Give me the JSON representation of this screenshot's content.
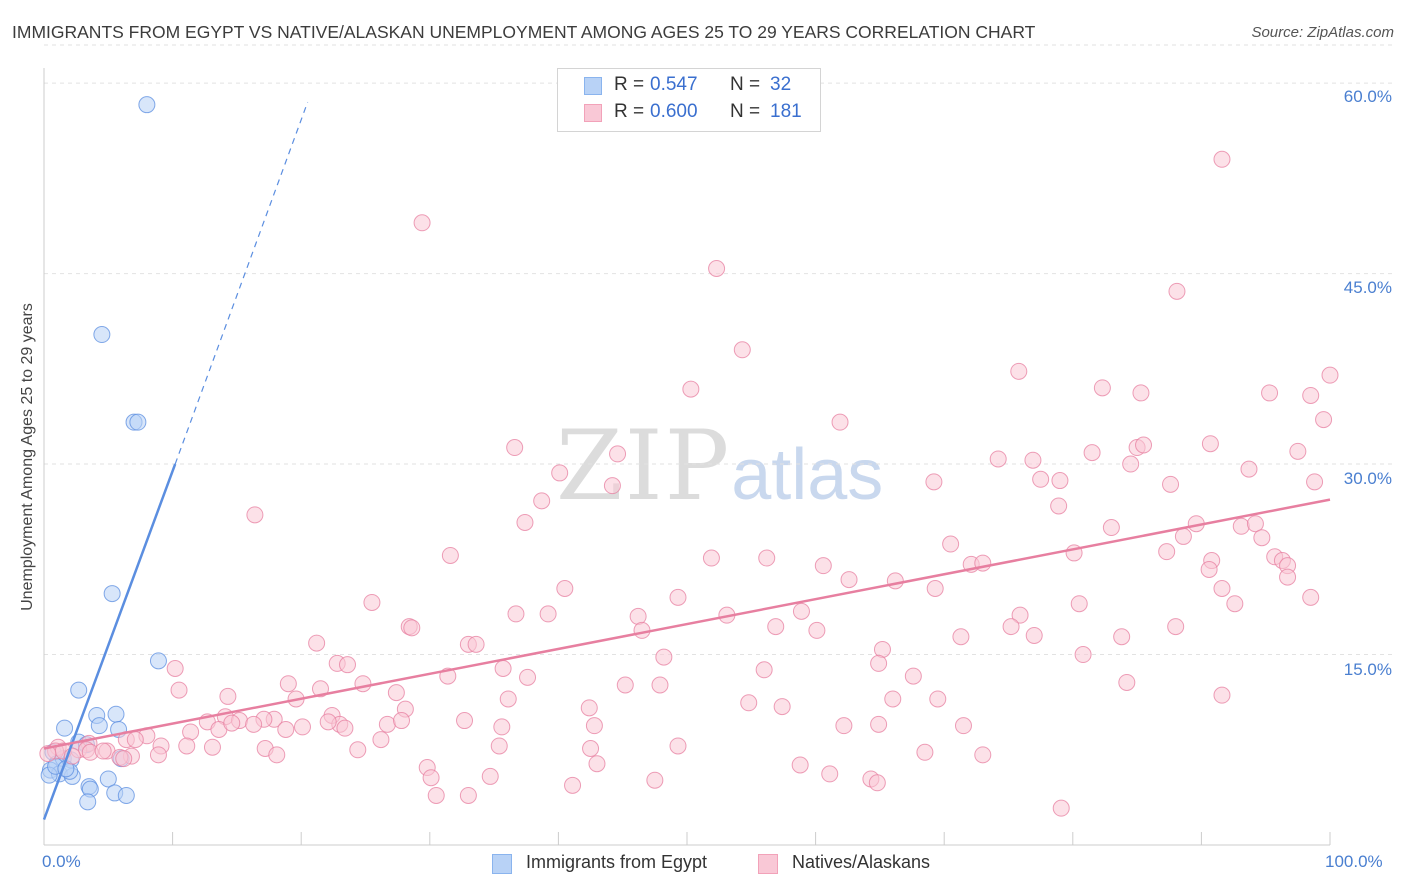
{
  "title": "IMMIGRANTS FROM EGYPT VS NATIVE/ALASKAN UNEMPLOYMENT AMONG AGES 25 TO 29 YEARS CORRELATION CHART",
  "source": "Source: ZipAtlas.com",
  "watermark": {
    "part1": "ZIP",
    "part2": "atlas"
  },
  "stats": [
    {
      "r_label": "R =",
      "r_value": "0.547",
      "n_label": "N =",
      "n_value": "32",
      "color": "#8ab4ee",
      "fill": "#b8d2f6"
    },
    {
      "r_label": "R =",
      "r_value": "0.600",
      "n_label": "N =",
      "n_value": "181",
      "color": "#f2a2b9",
      "fill": "#f9c8d6"
    }
  ],
  "legend": [
    {
      "label": "Immigrants from Egypt",
      "color": "#8ab4ee",
      "fill": "#b8d2f6"
    },
    {
      "label": "Natives/Alaskans",
      "color": "#f2a2b9",
      "fill": "#f9c8d6"
    }
  ],
  "chart_data": {
    "type": "scatter",
    "title": "IMMIGRANTS FROM EGYPT VS NATIVE/ALASKAN UNEMPLOYMENT AMONG AGES 25 TO 29 YEARS CORRELATION CHART",
    "xlabel": "",
    "ylabel": "Unemployment Among Ages 25 to 29 years",
    "xlim": [
      0,
      100
    ],
    "ylim": [
      0,
      63
    ],
    "x_tick_labels": [
      {
        "value": 0,
        "label": "0.0%"
      },
      {
        "value": 100,
        "label": "100.0%"
      }
    ],
    "y_tick_labels": [
      {
        "value": 15,
        "label": "15.0%"
      },
      {
        "value": 30,
        "label": "30.0%"
      },
      {
        "value": 45,
        "label": "45.0%"
      },
      {
        "value": 60,
        "label": "60.0%"
      }
    ],
    "x_minor_ticks": [
      10,
      20,
      30,
      40,
      50,
      60,
      70,
      80,
      90,
      100
    ],
    "grid": true,
    "series": [
      {
        "name": "Immigrants from Egypt",
        "color": "#5b8ee0",
        "fill": "#b8d2f6",
        "trend": {
          "x0": 0,
          "y0": 2.0,
          "x1": 10.2,
          "y1": 30.0,
          "dash_to_x": 20.5,
          "dash_to_y": 58.5
        },
        "points": [
          [
            8.0,
            58.3
          ],
          [
            4.5,
            40.2
          ],
          [
            7.0,
            33.3
          ],
          [
            7.3,
            33.3
          ],
          [
            5.3,
            19.8
          ],
          [
            8.9,
            14.5
          ],
          [
            2.7,
            12.2
          ],
          [
            1.6,
            9.2
          ],
          [
            4.1,
            10.2
          ],
          [
            5.6,
            10.3
          ],
          [
            5.8,
            9.1
          ],
          [
            6.0,
            6.8
          ],
          [
            4.3,
            9.4
          ],
          [
            2.7,
            8.1
          ],
          [
            3.3,
            7.9
          ],
          [
            0.7,
            7.3
          ],
          [
            1.0,
            6.4
          ],
          [
            1.5,
            6.8
          ],
          [
            2.1,
            6.7
          ],
          [
            0.5,
            5.9
          ],
          [
            1.2,
            5.6
          ],
          [
            0.4,
            5.5
          ],
          [
            2.2,
            5.4
          ],
          [
            5.0,
            5.2
          ],
          [
            3.5,
            4.6
          ],
          [
            3.6,
            4.4
          ],
          [
            5.5,
            4.1
          ],
          [
            6.4,
            3.9
          ],
          [
            3.4,
            3.4
          ],
          [
            2.0,
            5.8
          ],
          [
            0.9,
            6.2
          ],
          [
            1.7,
            6.0
          ]
        ]
      },
      {
        "name": "Natives/Alaskans",
        "color": "#e77fa0",
        "fill": "#f9c8d6",
        "trend": {
          "x0": 0,
          "y0": 7.6,
          "x1": 100,
          "y1": 27.2
        },
        "points": [
          [
            91.6,
            54.0
          ],
          [
            29.4,
            49.0
          ],
          [
            52.3,
            45.4
          ],
          [
            88.1,
            43.6
          ],
          [
            54.3,
            39.0
          ],
          [
            50.3,
            35.9
          ],
          [
            75.8,
            37.3
          ],
          [
            100.0,
            37.0
          ],
          [
            82.3,
            36.0
          ],
          [
            85.3,
            35.6
          ],
          [
            95.3,
            35.6
          ],
          [
            98.5,
            35.4
          ],
          [
            61.9,
            33.3
          ],
          [
            99.5,
            33.5
          ],
          [
            36.6,
            31.3
          ],
          [
            81.5,
            30.9
          ],
          [
            85.0,
            31.3
          ],
          [
            85.5,
            31.5
          ],
          [
            90.7,
            31.6
          ],
          [
            97.5,
            31.0
          ],
          [
            44.6,
            30.8
          ],
          [
            74.2,
            30.4
          ],
          [
            76.9,
            30.3
          ],
          [
            84.5,
            30.0
          ],
          [
            93.7,
            29.6
          ],
          [
            40.1,
            29.3
          ],
          [
            69.2,
            28.6
          ],
          [
            77.5,
            28.8
          ],
          [
            79.0,
            28.7
          ],
          [
            87.6,
            28.4
          ],
          [
            98.8,
            28.6
          ],
          [
            44.2,
            28.3
          ],
          [
            38.7,
            27.1
          ],
          [
            78.9,
            26.7
          ],
          [
            16.4,
            26.0
          ],
          [
            37.4,
            25.4
          ],
          [
            83.0,
            25.0
          ],
          [
            89.6,
            25.3
          ],
          [
            93.1,
            25.1
          ],
          [
            94.2,
            25.3
          ],
          [
            94.7,
            24.2
          ],
          [
            88.6,
            24.3
          ],
          [
            70.5,
            23.7
          ],
          [
            80.1,
            23.0
          ],
          [
            87.3,
            23.1
          ],
          [
            31.6,
            22.8
          ],
          [
            51.9,
            22.6
          ],
          [
            56.2,
            22.6
          ],
          [
            90.8,
            22.4
          ],
          [
            95.7,
            22.7
          ],
          [
            60.6,
            22.0
          ],
          [
            72.1,
            22.1
          ],
          [
            73.0,
            22.2
          ],
          [
            90.6,
            21.7
          ],
          [
            96.3,
            22.4
          ],
          [
            96.7,
            22.0
          ],
          [
            62.6,
            20.9
          ],
          [
            66.2,
            20.8
          ],
          [
            69.3,
            20.2
          ],
          [
            40.5,
            20.2
          ],
          [
            91.6,
            20.2
          ],
          [
            96.7,
            21.1
          ],
          [
            49.3,
            19.5
          ],
          [
            25.5,
            19.1
          ],
          [
            80.5,
            19.0
          ],
          [
            92.6,
            19.0
          ],
          [
            98.5,
            19.5
          ],
          [
            36.7,
            18.2
          ],
          [
            39.2,
            18.2
          ],
          [
            46.2,
            18.0
          ],
          [
            53.1,
            18.1
          ],
          [
            58.9,
            18.4
          ],
          [
            75.9,
            18.1
          ],
          [
            88.0,
            17.2
          ],
          [
            75.2,
            17.2
          ],
          [
            28.4,
            17.2
          ],
          [
            28.6,
            17.1
          ],
          [
            46.5,
            16.9
          ],
          [
            60.1,
            16.9
          ],
          [
            56.9,
            17.2
          ],
          [
            71.3,
            16.4
          ],
          [
            77.0,
            16.5
          ],
          [
            83.8,
            16.4
          ],
          [
            21.2,
            15.9
          ],
          [
            33.0,
            15.8
          ],
          [
            33.6,
            15.8
          ],
          [
            65.2,
            15.4
          ],
          [
            48.2,
            14.8
          ],
          [
            80.8,
            15.0
          ],
          [
            22.8,
            14.3
          ],
          [
            23.6,
            14.2
          ],
          [
            35.7,
            13.9
          ],
          [
            10.2,
            13.9
          ],
          [
            37.6,
            13.2
          ],
          [
            56.0,
            13.8
          ],
          [
            64.9,
            14.3
          ],
          [
            67.6,
            13.3
          ],
          [
            31.4,
            13.3
          ],
          [
            24.8,
            12.7
          ],
          [
            19.0,
            12.7
          ],
          [
            10.5,
            12.2
          ],
          [
            21.5,
            12.3
          ],
          [
            45.2,
            12.6
          ],
          [
            47.9,
            12.6
          ],
          [
            84.2,
            12.8
          ],
          [
            27.4,
            12.0
          ],
          [
            14.3,
            11.7
          ],
          [
            19.6,
            11.5
          ],
          [
            36.1,
            11.5
          ],
          [
            42.4,
            10.8
          ],
          [
            54.8,
            11.2
          ],
          [
            57.4,
            10.9
          ],
          [
            66.0,
            11.5
          ],
          [
            69.5,
            11.5
          ],
          [
            91.6,
            11.8
          ],
          [
            28.1,
            10.7
          ],
          [
            22.4,
            10.2
          ],
          [
            12.7,
            9.7
          ],
          [
            14.1,
            10.1
          ],
          [
            15.2,
            9.8
          ],
          [
            17.9,
            9.9
          ],
          [
            20.1,
            9.3
          ],
          [
            26.7,
            9.5
          ],
          [
            27.8,
            9.8
          ],
          [
            32.7,
            9.8
          ],
          [
            17.1,
            9.9
          ],
          [
            35.6,
            9.3
          ],
          [
            42.8,
            9.4
          ],
          [
            23.0,
            9.5
          ],
          [
            23.4,
            9.2
          ],
          [
            16.3,
            9.5
          ],
          [
            13.6,
            9.1
          ],
          [
            62.2,
            9.4
          ],
          [
            64.9,
            9.5
          ],
          [
            71.5,
            9.4
          ],
          [
            8.0,
            8.6
          ],
          [
            11.4,
            8.9
          ],
          [
            18.8,
            9.1
          ],
          [
            14.6,
            9.6
          ],
          [
            22.1,
            9.7
          ],
          [
            6.4,
            8.3
          ],
          [
            7.1,
            8.3
          ],
          [
            3.5,
            8.0
          ],
          [
            9.1,
            7.8
          ],
          [
            17.2,
            7.6
          ],
          [
            24.4,
            7.5
          ],
          [
            26.2,
            8.3
          ],
          [
            11.1,
            7.8
          ],
          [
            13.1,
            7.7
          ],
          [
            1.1,
            7.7
          ],
          [
            0.9,
            7.4
          ],
          [
            1.5,
            7.4
          ],
          [
            2.7,
            7.5
          ],
          [
            3.3,
            7.5
          ],
          [
            4.9,
            7.4
          ],
          [
            6.8,
            7.0
          ],
          [
            5.9,
            6.9
          ],
          [
            6.2,
            6.8
          ],
          [
            8.9,
            7.1
          ],
          [
            18.1,
            7.1
          ],
          [
            3.6,
            7.3
          ],
          [
            4.6,
            7.4
          ],
          [
            2.2,
            7.0
          ],
          [
            0.3,
            7.2
          ],
          [
            35.4,
            7.8
          ],
          [
            42.5,
            7.6
          ],
          [
            49.3,
            7.8
          ],
          [
            68.5,
            7.3
          ],
          [
            73.0,
            7.1
          ],
          [
            58.8,
            6.3
          ],
          [
            43.0,
            6.4
          ],
          [
            29.8,
            6.1
          ],
          [
            30.1,
            5.3
          ],
          [
            34.7,
            5.4
          ],
          [
            47.5,
            5.1
          ],
          [
            61.1,
            5.6
          ],
          [
            64.3,
            5.2
          ],
          [
            64.8,
            4.9
          ],
          [
            41.1,
            4.7
          ],
          [
            30.5,
            3.9
          ],
          [
            33.0,
            3.9
          ],
          [
            79.1,
            2.9
          ]
        ]
      }
    ]
  }
}
